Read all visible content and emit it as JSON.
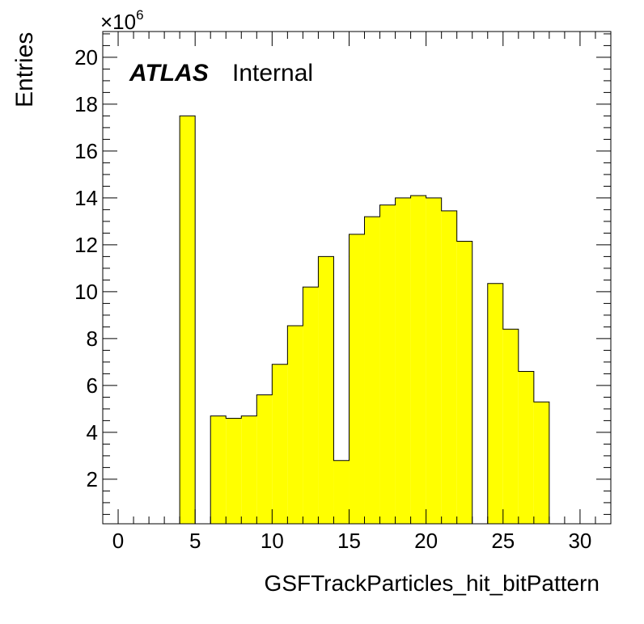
{
  "chart_data": {
    "type": "bar",
    "xlabel": "GSFTrackParticles_hit_bitPattern",
    "ylabel": "Entries",
    "y_multiplier_base": "×10",
    "y_multiplier_exp": "6",
    "annotation": {
      "experiment": "ATLAS",
      "status": "Internal"
    },
    "xlim": [
      -1,
      32
    ],
    "ylim": [
      0.1,
      21.1
    ],
    "x_ticks": [
      0,
      5,
      10,
      15,
      20,
      25,
      30
    ],
    "y_ticks": [
      2,
      4,
      6,
      8,
      10,
      12,
      14,
      16,
      18,
      20
    ],
    "bin_width": 1,
    "bin_edges": [
      0,
      1,
      2,
      3,
      4,
      5,
      6,
      7,
      8,
      9,
      10,
      11,
      12,
      13,
      14,
      15,
      16,
      17,
      18,
      19,
      20,
      21,
      22,
      23,
      24,
      25,
      26,
      27,
      28,
      29,
      30,
      31
    ],
    "values": [
      0,
      0,
      0,
      0,
      17.5,
      0,
      4.7,
      4.6,
      4.7,
      5.6,
      6.9,
      8.55,
      10.2,
      11.5,
      2.8,
      12.45,
      13.2,
      13.7,
      14.0,
      14.1,
      14.0,
      13.45,
      12.15,
      0,
      10.35,
      8.4,
      6.6,
      5.3,
      0,
      0,
      0
    ],
    "fill_color": "#ffff00",
    "line_color": "#000000",
    "grid": false,
    "legend": "none"
  }
}
